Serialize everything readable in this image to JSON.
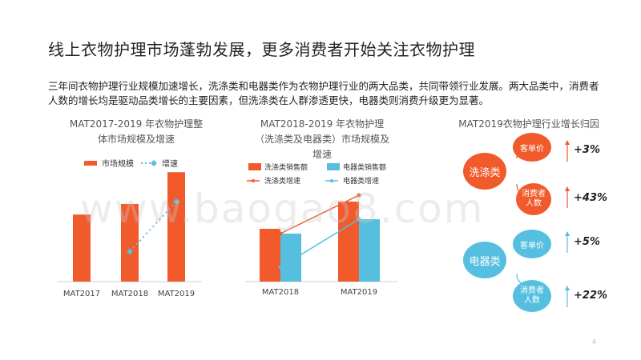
{
  "title": "线上衣物护理市场蓬勃发展，更多消费者开始关注衣物护理",
  "summary": "三年间衣物护理行业规模加速增长，洗涤类和电器类作为衣物护理行业的两大品类，共同带领行业发展。两大品类中，消费者人数的增长均是驱动品类增长的主要因素，但洗涤类在人群渗透更快，电器类则消费升级更为显著。",
  "watermark": "www.baogao8.com",
  "page_number": "4",
  "colors": {
    "orange": "#f15a2b",
    "blue": "#56bfe0",
    "text": "#333333"
  },
  "chart_data": [
    {
      "type": "bar",
      "title_line1": "MAT2017-2019 年衣物护理整",
      "title_line2": "体市场规模及增速",
      "categories": [
        "MAT2017",
        "MAT2018",
        "MAT2019"
      ],
      "series": [
        {
          "name": "市场规模",
          "values": [
            76,
            88,
            124
          ]
        },
        {
          "name": "增速",
          "values": [
            null,
            15,
            40
          ]
        }
      ]
    },
    {
      "type": "bar",
      "title_line1": "MAT2018-2019 年衣物护理",
      "title_line2": "（洗涤类及电器类）市场规模及",
      "title_line3": "增速",
      "categories": [
        "MAT2018",
        "MAT2019"
      ],
      "series": [
        {
          "name": "洗涤类销售额",
          "values": [
            66,
            100
          ]
        },
        {
          "name": "电器类销售额",
          "values": [
            60,
            78
          ]
        },
        {
          "name": "洗涤类增速",
          "values": [
            60,
            108
          ]
        },
        {
          "name": "电器类增速",
          "values": [
            18,
            78
          ]
        }
      ]
    },
    {
      "type": "table",
      "title": "MAT2019衣物护理行业增长归因",
      "groups": [
        {
          "name": "洗涤类",
          "items": [
            {
              "label": "客单价",
              "value": "+3%"
            },
            {
              "label": "消费者人数",
              "value": "+43%"
            }
          ]
        },
        {
          "name": "电器类",
          "items": [
            {
              "label": "客单价",
              "value": "+5%"
            },
            {
              "label": "消费者人数",
              "value": "+22%"
            }
          ]
        }
      ]
    }
  ]
}
